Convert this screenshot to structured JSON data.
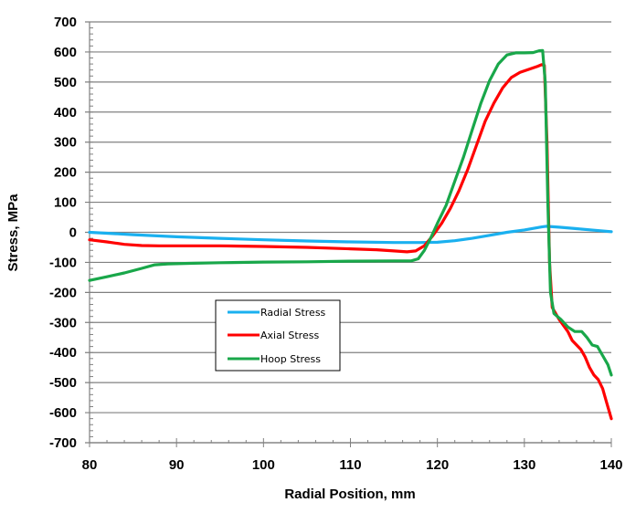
{
  "chart_data": {
    "type": "line",
    "title": "",
    "xlabel": "Radial Position, mm",
    "ylabel": "Stress, MPa",
    "xlim": [
      80,
      140
    ],
    "ylim": [
      -700,
      700
    ],
    "x_ticks": [
      80,
      90,
      100,
      110,
      120,
      130,
      140
    ],
    "y_ticks": [
      700,
      600,
      500,
      400,
      300,
      200,
      100,
      0,
      -100,
      -200,
      -300,
      -400,
      -500,
      -600,
      -700
    ],
    "x_minor_step": 2,
    "y_minor_step": 20,
    "grid": {
      "horizontal_major": true,
      "vertical": false
    },
    "legend": {
      "position": "inside-lower-left",
      "entries": [
        "Radial Stress",
        "Axial Stress",
        "Hoop Stress"
      ]
    },
    "series": [
      {
        "name": "Radial Stress",
        "color": "#1ab0ef",
        "points": [
          [
            80,
            0
          ],
          [
            85,
            -8
          ],
          [
            90,
            -15
          ],
          [
            95,
            -20
          ],
          [
            100,
            -25
          ],
          [
            105,
            -29
          ],
          [
            110,
            -32
          ],
          [
            115,
            -34
          ],
          [
            118,
            -34
          ],
          [
            120,
            -33
          ],
          [
            122,
            -28
          ],
          [
            124,
            -20
          ],
          [
            126,
            -10
          ],
          [
            128,
            0
          ],
          [
            130,
            8
          ],
          [
            132,
            18
          ],
          [
            132.5,
            20
          ],
          [
            134,
            17
          ],
          [
            136,
            12
          ],
          [
            138,
            7
          ],
          [
            140,
            2
          ]
        ]
      },
      {
        "name": "Axial Stress",
        "color": "#ff0000",
        "points": [
          [
            80,
            -25
          ],
          [
            82,
            -32
          ],
          [
            84,
            -40
          ],
          [
            86,
            -44
          ],
          [
            88,
            -45
          ],
          [
            90,
            -45
          ],
          [
            95,
            -45
          ],
          [
            100,
            -47
          ],
          [
            105,
            -50
          ],
          [
            110,
            -55
          ],
          [
            113,
            -58
          ],
          [
            115,
            -62
          ],
          [
            116.5,
            -65
          ],
          [
            117.5,
            -62
          ],
          [
            118.5,
            -45
          ],
          [
            119.5,
            -10
          ],
          [
            120.5,
            30
          ],
          [
            121.5,
            80
          ],
          [
            122.5,
            140
          ],
          [
            123.5,
            210
          ],
          [
            124.5,
            290
          ],
          [
            125.5,
            370
          ],
          [
            126.5,
            430
          ],
          [
            127.5,
            480
          ],
          [
            128.5,
            515
          ],
          [
            129.5,
            532
          ],
          [
            130.5,
            542
          ],
          [
            131.5,
            552
          ],
          [
            132,
            558
          ],
          [
            132.3,
            555
          ],
          [
            132.6,
            300
          ],
          [
            132.9,
            -100
          ],
          [
            133.2,
            -250
          ],
          [
            134,
            -290
          ],
          [
            135,
            -330
          ],
          [
            135.5,
            -360
          ],
          [
            136.5,
            -390
          ],
          [
            137,
            -415
          ],
          [
            137.5,
            -450
          ],
          [
            138,
            -475
          ],
          [
            138.5,
            -490
          ],
          [
            139,
            -520
          ],
          [
            139.5,
            -570
          ],
          [
            140,
            -620
          ]
        ]
      },
      {
        "name": "Hoop Stress",
        "color": "#19a74a",
        "points": [
          [
            80,
            -160
          ],
          [
            82,
            -148
          ],
          [
            84,
            -135
          ],
          [
            86,
            -120
          ],
          [
            87.5,
            -108
          ],
          [
            89,
            -105
          ],
          [
            92,
            -103
          ],
          [
            95,
            -101
          ],
          [
            100,
            -99
          ],
          [
            105,
            -98
          ],
          [
            110,
            -96
          ],
          [
            115,
            -95
          ],
          [
            117,
            -95
          ],
          [
            117.8,
            -88
          ],
          [
            118.5,
            -60
          ],
          [
            119.3,
            -15
          ],
          [
            120,
            30
          ],
          [
            121,
            90
          ],
          [
            122,
            170
          ],
          [
            123,
            250
          ],
          [
            124,
            340
          ],
          [
            125,
            430
          ],
          [
            126,
            505
          ],
          [
            127,
            560
          ],
          [
            128,
            590
          ],
          [
            129,
            597
          ],
          [
            130,
            597
          ],
          [
            131,
            598
          ],
          [
            131.7,
            604
          ],
          [
            132.1,
            605
          ],
          [
            132.4,
            500
          ],
          [
            132.7,
            100
          ],
          [
            133,
            -200
          ],
          [
            133.4,
            -270
          ],
          [
            134.2,
            -290
          ],
          [
            135,
            -315
          ],
          [
            135.8,
            -330
          ],
          [
            136.6,
            -330
          ],
          [
            137.2,
            -350
          ],
          [
            137.8,
            -375
          ],
          [
            138.4,
            -380
          ],
          [
            139,
            -410
          ],
          [
            139.6,
            -440
          ],
          [
            140,
            -475
          ]
        ]
      }
    ]
  },
  "chart": {
    "xlabel": "Radial Position, mm",
    "ylabel": "Stress, MPa",
    "legend_labels": [
      "Radial Stress",
      "Axial Stress",
      "Hoop Stress"
    ],
    "axis_color": "#808080",
    "grid_color": "#808080"
  }
}
